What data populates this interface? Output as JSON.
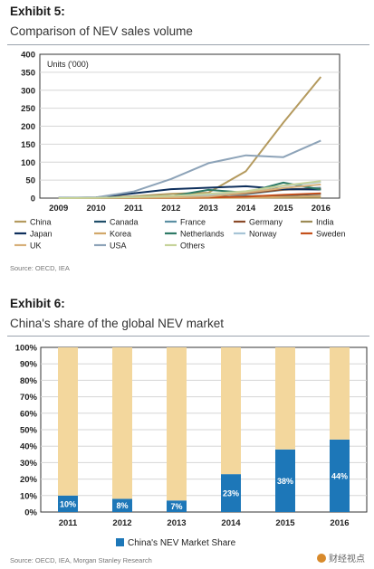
{
  "exhibit5": {
    "label": "Exhibit 5:",
    "title": "Comparison of NEV sales volume",
    "source": "Source: OECD, IEA"
  },
  "exhibit6": {
    "label": "Exhibit 6:",
    "title": "China's share of the global NEV market",
    "source": "Source: OECD, IEA, Morgan Stanley Research"
  },
  "watermark": "财经视点",
  "chart_data": [
    {
      "type": "line",
      "ylabel": "Units ('000)",
      "x": [
        "2009",
        "2010",
        "2011",
        "2012",
        "2013",
        "2014",
        "2015",
        "2016"
      ],
      "ylim": [
        0,
        400
      ],
      "yticks": [
        0,
        50,
        100,
        150,
        200,
        250,
        300,
        350,
        400
      ],
      "grid": true,
      "legend_position": "bottom",
      "series": [
        {
          "name": "China",
          "color": "#b49a5e",
          "values": [
            0.5,
            1.5,
            5,
            12,
            15,
            75,
            210,
            337
          ]
        },
        {
          "name": "Canada",
          "color": "#1f4e69",
          "values": [
            0,
            0.5,
            0.5,
            1,
            3,
            5,
            7,
            12
          ]
        },
        {
          "name": "France",
          "color": "#5b8fa3",
          "values": [
            0,
            0.5,
            3,
            6,
            9,
            11,
            23,
            29
          ]
        },
        {
          "name": "Germany",
          "color": "#8a4a28",
          "values": [
            0,
            0.5,
            2,
            3,
            6,
            13,
            24,
            26
          ]
        },
        {
          "name": "India",
          "color": "#9c8a54",
          "values": [
            0,
            0.5,
            0.5,
            0.5,
            0.5,
            1,
            1,
            1
          ]
        },
        {
          "name": "Japan",
          "color": "#0e2f5c",
          "values": [
            0.5,
            2,
            13,
            25,
            29,
            33,
            25,
            24
          ]
        },
        {
          "name": "Korea",
          "color": "#d2a86a",
          "values": [
            0,
            0.5,
            0.5,
            0.5,
            1,
            1,
            3,
            6
          ]
        },
        {
          "name": "Netherlands",
          "color": "#2e7a66",
          "values": [
            0,
            0.5,
            1,
            5,
            23,
            15,
            43,
            24
          ]
        },
        {
          "name": "Norway",
          "color": "#a7c4d6",
          "values": [
            0,
            0.5,
            2,
            4,
            8,
            18,
            34,
            45
          ]
        },
        {
          "name": "Sweden",
          "color": "#c4501b",
          "values": [
            0,
            0.5,
            0.5,
            1,
            2,
            4,
            9,
            13
          ]
        },
        {
          "name": "UK",
          "color": "#d7b07a",
          "values": [
            0,
            0.5,
            1,
            2,
            4,
            15,
            28,
            38
          ]
        },
        {
          "name": "USA",
          "color": "#8da3b8",
          "values": [
            1.5,
            2,
            18,
            53,
            97,
            119,
            114,
            160
          ]
        },
        {
          "name": "Others",
          "color": "#c6d39a",
          "values": [
            0,
            0.5,
            3,
            6,
            12,
            19,
            35,
            47
          ]
        }
      ]
    },
    {
      "type": "bar",
      "stacked": true,
      "categories": [
        "2011",
        "2012",
        "2013",
        "2014",
        "2015",
        "2016"
      ],
      "ylim": [
        0,
        100
      ],
      "yticks": [
        "0%",
        "10%",
        "20%",
        "30%",
        "40%",
        "50%",
        "60%",
        "70%",
        "80%",
        "90%",
        "100%"
      ],
      "grid": true,
      "legend_position": "bottom",
      "series": [
        {
          "name": "China's NEV Market Share",
          "color": "#1d77b8",
          "values": [
            10,
            8,
            7,
            23,
            38,
            44
          ],
          "labels": [
            "10%",
            "8%",
            "7%",
            "23%",
            "38%",
            "44%"
          ]
        },
        {
          "name": "",
          "color": "#f3d79d",
          "values": [
            90,
            92,
            93,
            77,
            62,
            56
          ]
        }
      ]
    }
  ]
}
